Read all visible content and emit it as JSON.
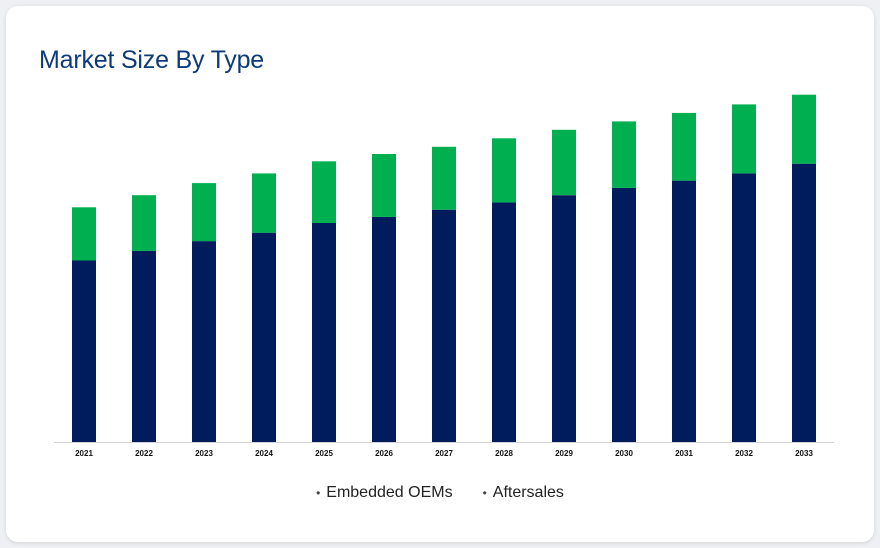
{
  "chart_data": {
    "type": "bar",
    "stacked": true,
    "title": "Market Size By Type",
    "categories": [
      "2021",
      "2022",
      "2023",
      "2024",
      "2025",
      "2026",
      "2027",
      "2028",
      "2029",
      "2030",
      "2031",
      "2032",
      "2033"
    ],
    "series": [
      {
        "name": "Embedded OEMs",
        "color": "#011c5c",
        "values": [
          150,
          158,
          166,
          173,
          181,
          186,
          192,
          198,
          204,
          210,
          216,
          222,
          230
        ]
      },
      {
        "name": "Aftersales",
        "color": "#00b050",
        "values": [
          44,
          46,
          48,
          49,
          51,
          52,
          52,
          53,
          54,
          55,
          56,
          57,
          57
        ]
      }
    ],
    "ylim": [
      0,
      300
    ],
    "grid": false,
    "legend_position": "bottom"
  }
}
